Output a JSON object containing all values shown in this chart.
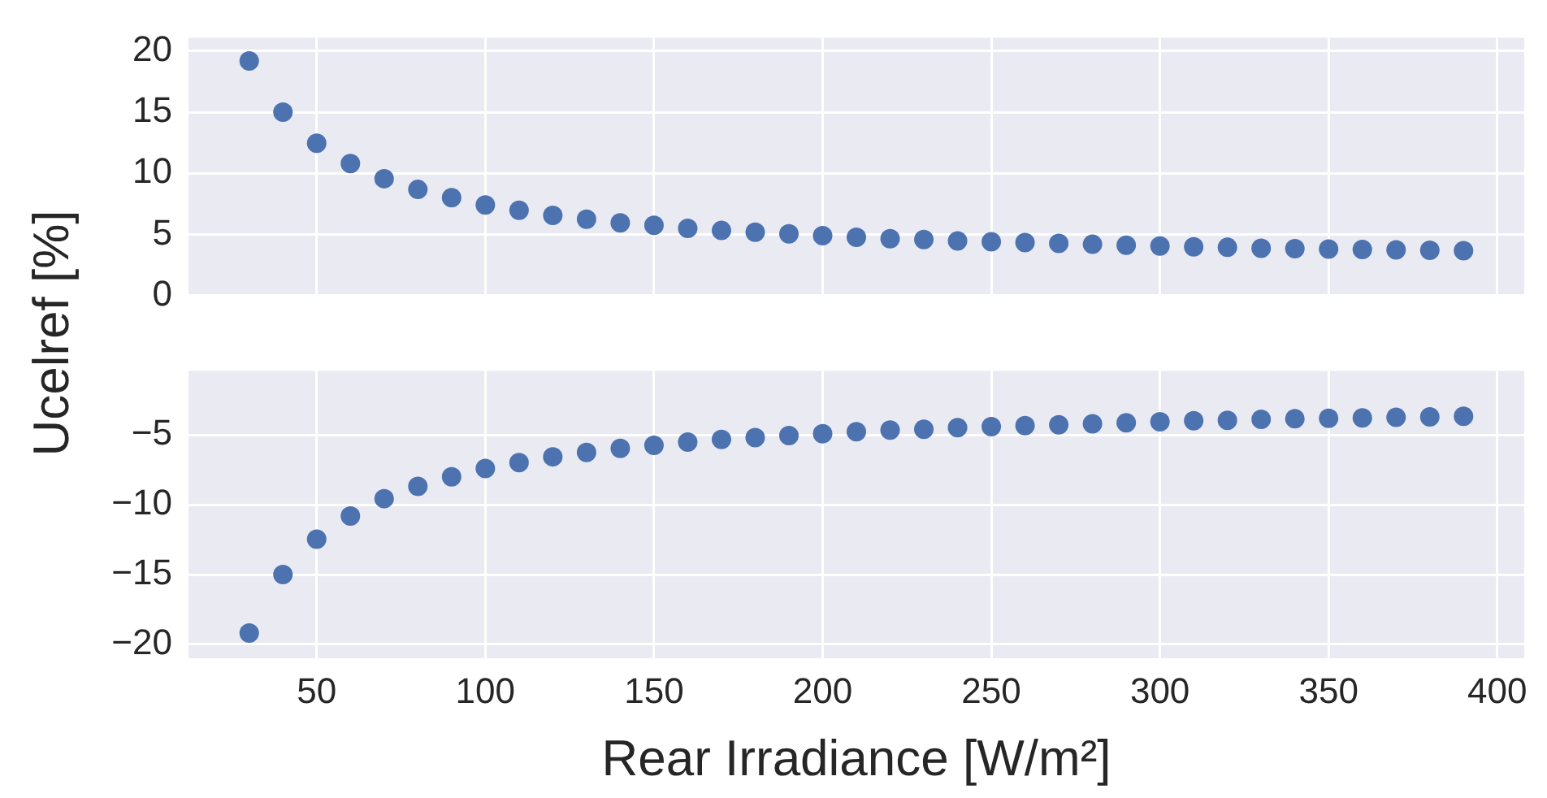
{
  "chart_data": [
    {
      "type": "scatter",
      "ylabel": "Ucelref [%]",
      "x": [
        30,
        40,
        50,
        60,
        70,
        80,
        90,
        100,
        110,
        120,
        130,
        140,
        150,
        160,
        170,
        180,
        190,
        200,
        210,
        220,
        230,
        240,
        250,
        260,
        270,
        280,
        290,
        300,
        310,
        320,
        330,
        340,
        350,
        360,
        370,
        380,
        390
      ],
      "series": [
        {
          "color": "#4c72b0",
          "values": [
            19.2,
            15.0,
            12.46,
            10.8,
            9.56,
            8.68,
            8.0,
            7.4,
            6.98,
            6.56,
            6.24,
            5.95,
            5.74,
            5.5,
            5.32,
            5.18,
            5.04,
            4.9,
            4.76,
            4.65,
            4.58,
            4.47,
            4.4,
            4.33,
            4.26,
            4.19,
            4.12,
            4.05,
            3.98,
            3.94,
            3.87,
            3.83,
            3.8,
            3.77,
            3.73,
            3.7,
            3.66
          ]
        }
      ],
      "xlim": [
        12,
        408
      ],
      "xticks": [
        50,
        100,
        150,
        200,
        250,
        300,
        350,
        400
      ],
      "ylim": [
        0,
        21.1
      ],
      "yticks": [
        0,
        5,
        10,
        15,
        20
      ],
      "tick_labels": "y",
      "grid": true,
      "marker": "circle"
    },
    {
      "type": "scatter",
      "xlabel": "Rear Irradiance [W/m²]",
      "x": [
        30,
        40,
        50,
        60,
        70,
        80,
        90,
        100,
        110,
        120,
        130,
        140,
        150,
        160,
        170,
        180,
        190,
        200,
        210,
        220,
        230,
        240,
        250,
        260,
        270,
        280,
        290,
        300,
        310,
        320,
        330,
        340,
        350,
        360,
        370,
        380,
        390
      ],
      "series": [
        {
          "color": "#4c72b0",
          "values": [
            -19.2,
            -15.0,
            -12.46,
            -10.8,
            -9.56,
            -8.68,
            -8.0,
            -7.4,
            -6.98,
            -6.56,
            -6.24,
            -5.95,
            -5.74,
            -5.5,
            -5.32,
            -5.18,
            -5.04,
            -4.9,
            -4.76,
            -4.65,
            -4.58,
            -4.47,
            -4.4,
            -4.33,
            -4.26,
            -4.19,
            -4.12,
            -4.05,
            -3.98,
            -3.94,
            -3.87,
            -3.83,
            -3.8,
            -3.77,
            -3.73,
            -3.7,
            -3.66
          ]
        }
      ],
      "xlim": [
        12,
        408
      ],
      "xticks": [
        50,
        100,
        150,
        200,
        250,
        300,
        350,
        400
      ],
      "ylim": [
        -21,
        -0.4
      ],
      "yticks": [
        {
          "value": -20,
          "label": "−20"
        },
        {
          "value": -15,
          "label": "−15"
        },
        {
          "value": -10,
          "label": "−10"
        },
        {
          "value": -5,
          "label": "−5"
        }
      ],
      "grid": true,
      "marker": "circle"
    }
  ]
}
